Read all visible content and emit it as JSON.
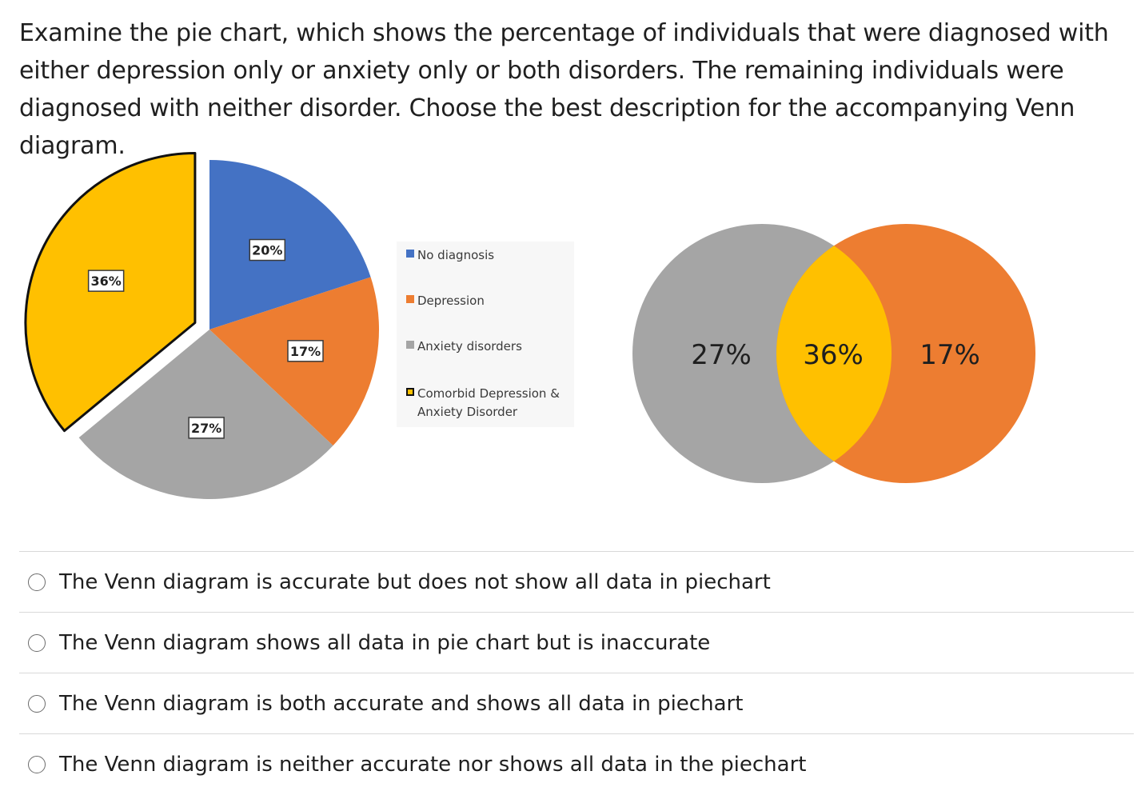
{
  "question": {
    "text": "Examine the pie chart, which shows the percentage of individuals that were diagnosed with either depression only or anxiety only or both disorders. The remaining individuals were diagnosed with neither disorder. Choose the best description for the accompanying Venn diagram."
  },
  "pie": {
    "slices": [
      {
        "label": "20%",
        "value": 20,
        "color": "#4472c4"
      },
      {
        "label": "17%",
        "value": 17,
        "color": "#ed7d31"
      },
      {
        "label": "27%",
        "value": 27,
        "color": "#a5a5a5"
      },
      {
        "label": "36%",
        "value": 36,
        "color": "#ffc000"
      }
    ]
  },
  "legend": {
    "items": [
      {
        "label": "No diagnosis",
        "color": "#4472c4"
      },
      {
        "label": "Depression",
        "color": "#ed7d31"
      },
      {
        "label": "Anxiety disorders",
        "color": "#a5a5a5"
      },
      {
        "label": "Comorbid Depression & Anxiety Disorder",
        "color": "#ffc000"
      }
    ]
  },
  "venn": {
    "left_label": "27%",
    "overlap_label": "36%",
    "right_label": "17%",
    "left_color": "#a5a5a5",
    "right_color": "#ed7d31",
    "overlap_color": "#ffc000"
  },
  "options": [
    {
      "label": "The Venn diagram is accurate but does not show all data in piechart",
      "selected": false
    },
    {
      "label": "The Venn diagram shows all data in pie chart but is inaccurate",
      "selected": false
    },
    {
      "label": "The Venn diagram is both accurate and shows all data in piechart",
      "selected": false
    },
    {
      "label": "The Venn diagram is neither accurate nor shows all data in the piechart",
      "selected": false
    }
  ]
}
